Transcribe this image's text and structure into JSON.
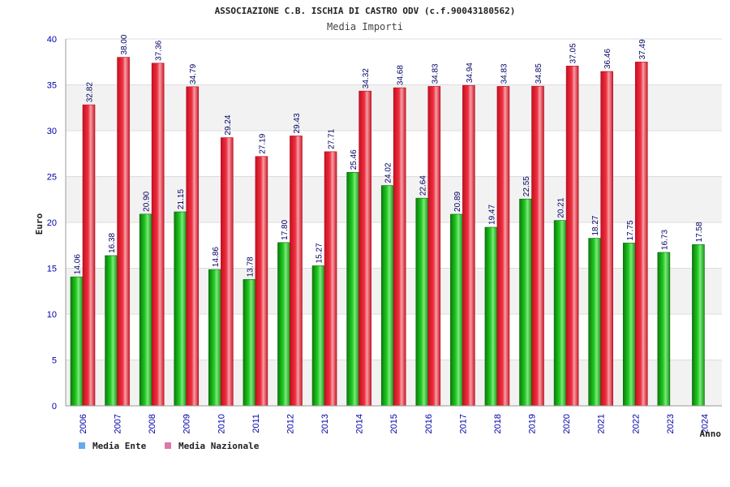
{
  "chart_data": {
    "type": "bar",
    "title": "ASSOCIAZIONE C.B. ISCHIA DI CASTRO ODV (c.f.90043180562)",
    "subtitle": "Media Importi",
    "xlabel": "Anno",
    "ylabel": "Euro",
    "ylim": [
      0,
      40
    ],
    "yticks": [
      0,
      5,
      10,
      15,
      20,
      25,
      30,
      35,
      40
    ],
    "grid": true,
    "legend_position": "bottom-left",
    "categories": [
      "2006",
      "2007",
      "2008",
      "2009",
      "2010",
      "2011",
      "2012",
      "2013",
      "2014",
      "2015",
      "2016",
      "2017",
      "2018",
      "2019",
      "2020",
      "2021",
      "2022",
      "2023",
      "2024"
    ],
    "series": [
      {
        "name": "Media Ente",
        "color": "#22bb22",
        "legend_color": "#66aaee",
        "values": [
          14.06,
          16.38,
          20.9,
          21.15,
          14.86,
          13.78,
          17.8,
          15.27,
          25.46,
          24.02,
          22.64,
          20.89,
          19.47,
          22.55,
          20.21,
          18.27,
          17.75,
          16.73,
          17.58
        ],
        "labels": [
          "14.06",
          "16.38",
          "20.90",
          "21.15",
          "14.86",
          "13.78",
          "17.80",
          "15.27",
          "25.46",
          "24.02",
          "22.64",
          "20.89",
          "19.47",
          "22.55",
          "20.21",
          "18.27",
          "17.75",
          "16.73",
          "17.58"
        ]
      },
      {
        "name": "Media Nazionale",
        "color": "#ee2233",
        "legend_color": "#dd77aa",
        "values": [
          32.82,
          38.0,
          37.36,
          34.79,
          29.24,
          27.19,
          29.43,
          27.71,
          34.32,
          34.68,
          34.83,
          34.94,
          34.83,
          34.85,
          37.05,
          36.46,
          37.49,
          null,
          null
        ],
        "labels": [
          "32.82",
          "38.00",
          "37.36",
          "34.79",
          "29.24",
          "27.19",
          "29.43",
          "27.71",
          "34.32",
          "34.68",
          "34.83",
          "34.94",
          "34.83",
          "34.85",
          "37.05",
          "36.46",
          "37.49",
          "",
          ""
        ]
      }
    ]
  }
}
